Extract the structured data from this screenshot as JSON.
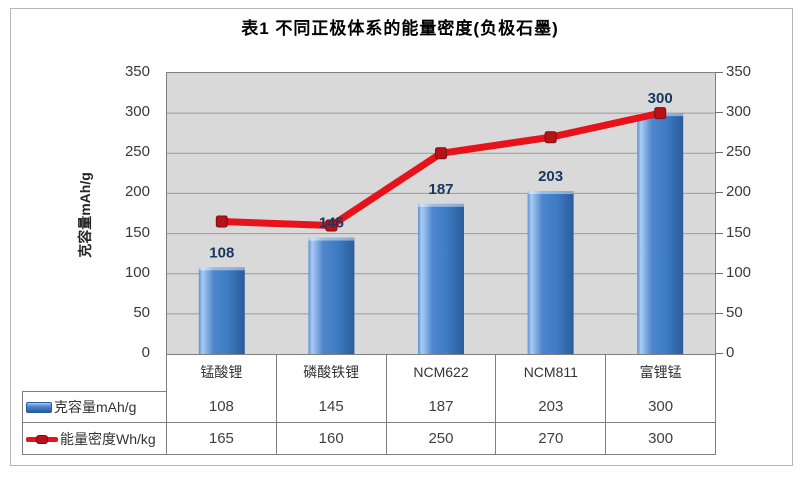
{
  "title": "表1 不同正极体系的能量密度(负极石墨)",
  "chart_data": {
    "type": "bar",
    "subtype": "bar-line-combo",
    "title": "表1 不同正极体系的能量密度(负极石墨)",
    "categories": [
      "锰酸锂",
      "磷酸铁锂",
      "NCM622",
      "NCM811",
      "富锂锰"
    ],
    "series": [
      {
        "name": "克容量mAh/g",
        "type": "bar",
        "values": [
          108,
          145,
          187,
          203,
          300
        ],
        "color": "#3e7cc4"
      },
      {
        "name": "能量密度Wh/kg",
        "type": "line",
        "values": [
          165,
          160,
          250,
          270,
          300
        ],
        "color": "#e6131b"
      }
    ],
    "ylabel": "克容量mAh/g",
    "axis_left": {
      "min": 0,
      "max": 350,
      "step": 50
    },
    "axis_right": {
      "min": 0,
      "max": 350,
      "step": 50
    },
    "grid": true,
    "data_labels_on": "克容量mAh/g",
    "legend_position": "table-left"
  },
  "colors": {
    "plot_bg": "#d9d9d9",
    "gridline": "#9b9b9b",
    "table_border": "#7f7f7f",
    "bar_main": "#3e7cc4",
    "bar_light": "#a9ccf4",
    "bar_dark": "#2a5c9c",
    "line_red": "#e6131b",
    "marker_red": "#b5121a",
    "data_label": "#17375e",
    "tick_text": "#3a3a3a"
  }
}
